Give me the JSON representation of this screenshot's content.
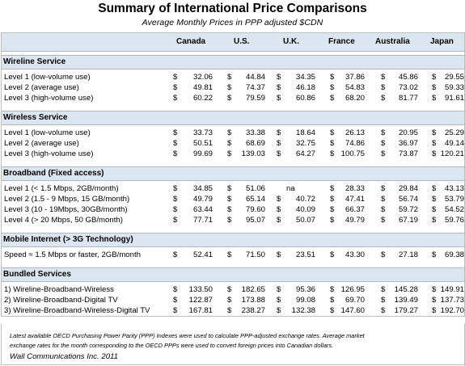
{
  "title": "Summary of International Price Comparisons",
  "subtitle": "Average Monthly Prices in PPP adjusted $CDN",
  "columns": [
    "Canada",
    "U.S.",
    "U.K.",
    "France",
    "Australia",
    "Japan"
  ],
  "sections": [
    {
      "title": "Wireline Service",
      "rows": [
        {
          "label": "Level 1 (low-volume use)",
          "values": [
            "32.06",
            "44.84",
            "34.35",
            "37.86",
            "45.86",
            "29.55"
          ],
          "dollars": [
            true,
            true,
            true,
            true,
            true,
            true
          ]
        },
        {
          "label": "Level 2 (average use)",
          "values": [
            "49.81",
            "74.37",
            "46.18",
            "54.83",
            "73.02",
            "59.33"
          ],
          "dollars": [
            true,
            true,
            true,
            true,
            true,
            true
          ]
        },
        {
          "label": "Level 3 (high-volume use)",
          "values": [
            "60.22",
            "79.59",
            "60.86",
            "68.20",
            "81.77",
            "91.61"
          ],
          "dollars": [
            true,
            true,
            true,
            true,
            true,
            true
          ]
        }
      ]
    },
    {
      "title": "Wireless Service",
      "rows": [
        {
          "label": "Level 1 (low-volume use)",
          "values": [
            "33.73",
            "33.38",
            "18.64",
            "26.13",
            "20.95",
            "25.29"
          ],
          "dollars": [
            true,
            true,
            true,
            true,
            true,
            true
          ]
        },
        {
          "label": "Level 2 (average use)",
          "values": [
            "50.51",
            "68.69",
            "32.75",
            "74.86",
            "36.97",
            "49.14"
          ],
          "dollars": [
            true,
            true,
            true,
            true,
            true,
            true
          ]
        },
        {
          "label": "Level 3 (high-volume use)",
          "values": [
            "99.69",
            "139.03",
            "64.27",
            "100.75",
            "73.87",
            "120.21"
          ],
          "dollars": [
            true,
            true,
            true,
            true,
            true,
            true
          ]
        }
      ]
    },
    {
      "title": "Broadband (Fixed access)",
      "rows": [
        {
          "label": "Level 1 (< 1.5 Mbps, 2GB/month)",
          "values": [
            "34.85",
            "51.06",
            "na",
            "28.33",
            "29.84",
            "43.13"
          ],
          "dollars": [
            true,
            true,
            false,
            true,
            true,
            true
          ]
        },
        {
          "label": "Level 2 (1.5 - 9 Mbps, 15 GB/month)",
          "values": [
            "49.79",
            "65.14",
            "40.72",
            "47.41",
            "56.74",
            "53.79"
          ],
          "dollars": [
            true,
            true,
            true,
            true,
            true,
            true
          ]
        },
        {
          "label": "Level 3 (10 - 19Mbps, 30GB/month)",
          "values": [
            "63.44",
            "79.60",
            "40.09",
            "66.37",
            "59.72",
            "54.52"
          ],
          "dollars": [
            true,
            true,
            true,
            true,
            true,
            true
          ]
        },
        {
          "label": "Level 4 (> 20 Mbps, 50 GB/month)",
          "values": [
            "77.71",
            "95.07",
            "50.07",
            "49.79",
            "67.19",
            "59.76"
          ],
          "dollars": [
            true,
            true,
            true,
            true,
            true,
            true
          ]
        }
      ]
    },
    {
      "title": "Mobile Internet (> 3G Technology)",
      "rows": [
        {
          "label": "Speed ≈ 1.5 Mbps or faster, 2GB/month",
          "values": [
            "52.41",
            "71.50",
            "23.51",
            "43.30",
            "27.18",
            "69.38"
          ],
          "dollars": [
            true,
            true,
            true,
            true,
            true,
            true
          ]
        }
      ]
    },
    {
      "title": "Bundled Services",
      "rows": [
        {
          "label": "1) Wireline-Broadband-Wireless",
          "values": [
            "133.50",
            "182.65",
            "95.36",
            "126.95",
            "145.28",
            "149.91"
          ],
          "dollars": [
            true,
            true,
            true,
            true,
            true,
            true
          ]
        },
        {
          "label": "2) Wireline-Broadband-Digital TV",
          "values": [
            "122.87",
            "173.88",
            "99.08",
            "69.70",
            "139.49",
            "137.73"
          ],
          "dollars": [
            true,
            true,
            true,
            true,
            true,
            true
          ]
        },
        {
          "label": "3) Wireline-Broadband-Wireless-Digital TV",
          "values": [
            "167.81",
            "238.27",
            "132.38",
            "147.60",
            "179.27",
            "192.70"
          ],
          "dollars": [
            true,
            true,
            true,
            true,
            true,
            true
          ]
        }
      ]
    }
  ],
  "footnote_line1": "Latest available OECD Purchasing Power Parity (PPP) Indexes were used to calculate PPP-adjusted exchange rates.  Average market",
  "footnote_line2": "exchange rates for the month corresponding to the OECD PPPs were used to convert foreign prices into Canadian dollars.",
  "credit": "Wall Communications Inc. 2011",
  "currency_symbol": "$"
}
